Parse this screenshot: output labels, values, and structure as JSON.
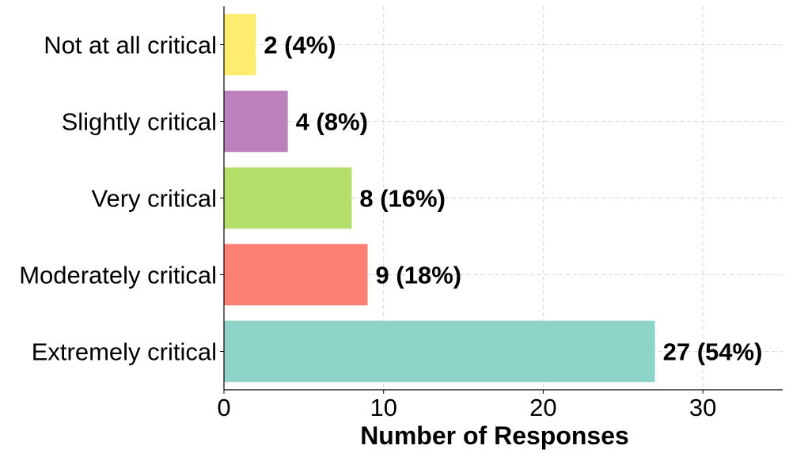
{
  "chart_data": {
    "type": "bar",
    "orientation": "horizontal",
    "categories": [
      "Not at all critical",
      "Slightly critical",
      "Very critical",
      "Moderately critical",
      "Extremely critical"
    ],
    "values": [
      2,
      4,
      8,
      9,
      27
    ],
    "value_labels": [
      "2 (4%)",
      "4 (8%)",
      "8 (16%)",
      "9 (18%)",
      "27 (54%)"
    ],
    "colors": [
      "#ffed6f",
      "#bc80bd",
      "#b3de69",
      "#fb8072",
      "#8dd3c7"
    ],
    "xlabel": "Number of Responses",
    "ylabel": "",
    "xlim": [
      0,
      35
    ],
    "xticks": [
      0,
      10,
      20,
      30
    ],
    "grid": true
  }
}
